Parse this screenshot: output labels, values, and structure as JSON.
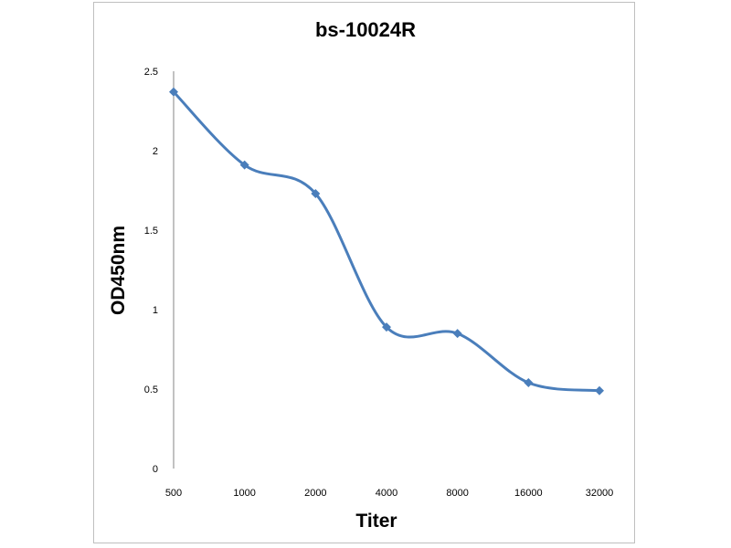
{
  "chart_data": {
    "type": "line",
    "title": "bs-10024R",
    "xlabel": "Titer",
    "ylabel": "OD450nm",
    "categories": [
      "500",
      "1000",
      "2000",
      "4000",
      "8000",
      "16000",
      "32000"
    ],
    "series": [
      {
        "values": [
          2.37,
          1.91,
          1.73,
          0.89,
          0.85,
          0.54,
          0.49
        ]
      }
    ],
    "yticks": [
      "0",
      "0.5",
      "1",
      "1.5",
      "2",
      "2.5"
    ],
    "ylim": [
      0,
      2.5
    ],
    "grid": false,
    "legend": "none",
    "line_color": "#4a7ebb",
    "smooth": true,
    "marker": "diamond"
  }
}
